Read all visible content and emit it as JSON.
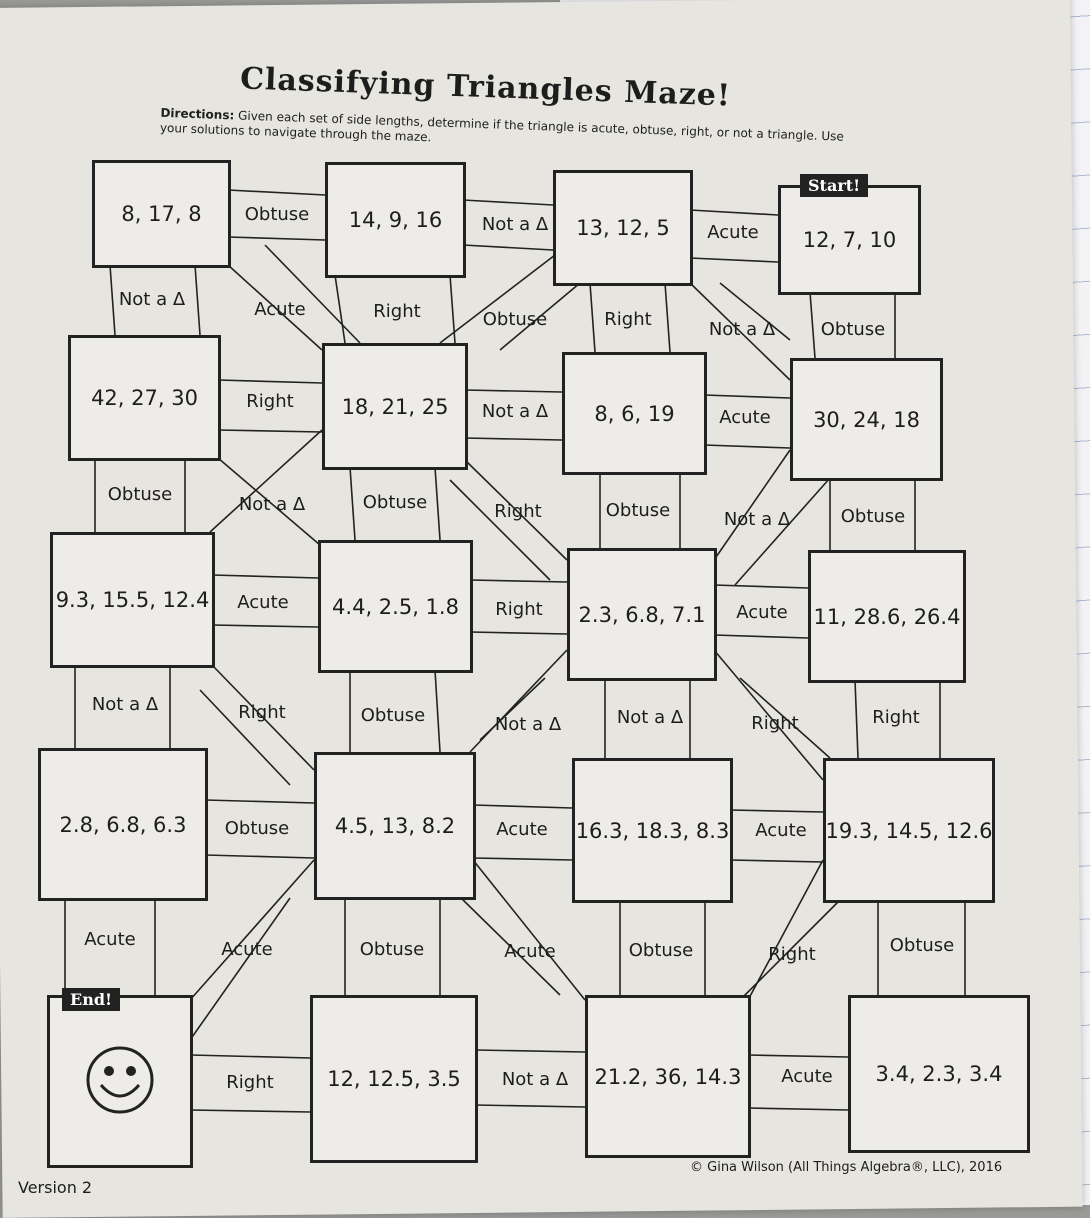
{
  "title": "Classifying Triangles Maze!",
  "directions": {
    "label": "Directions:",
    "text": "Given each set of side lengths, determine if the triangle is acute, obtuse, right, or not a triangle. Use your solutions to navigate through the maze."
  },
  "start_label": "Start!",
  "end_label": "End!",
  "end_icon": "smiley-face-icon",
  "boxes": [
    "8, 17, 8",
    "14, 9, 16",
    "13, 12, 5",
    "12, 7, 10",
    "42, 27, 30",
    "18, 21, 25",
    "8, 6, 19",
    "30, 24, 18",
    "9.3, 15.5, 12.4",
    "4.4, 2.5, 1.8",
    "2.3, 6.8, 7.1",
    "11, 28.6, 26.4",
    "2.8, 6.8, 6.3",
    "4.5, 13, 8.2",
    "16.3, 18.3, 8.3",
    "19.3, 14.5, 12.6",
    "12, 12.5, 3.5",
    "21.2, 36, 14.3",
    "3.4, 2.3, 3.4"
  ],
  "labels": [
    "Obtuse",
    "Not a Δ",
    "Acute",
    "Not a Δ",
    "Acute",
    "Right",
    "Obtuse",
    "Right",
    "Not a Δ",
    "Obtuse",
    "Right",
    "Not a Δ",
    "Acute",
    "Obtuse",
    "Not a Δ",
    "Obtuse",
    "Right",
    "Obtuse",
    "Not a Δ",
    "Obtuse",
    "Acute",
    "Right",
    "Acute",
    "Not a Δ",
    "Right",
    "Obtuse",
    "Not a Δ",
    "Not a Δ",
    "Right",
    "Right",
    "Obtuse",
    "Acute",
    "Acute",
    "Acute",
    "Acute",
    "Obtuse",
    "Acute",
    "Obtuse",
    "Right",
    "Obtuse",
    "Right",
    "Not a Δ",
    "Acute"
  ],
  "footer": {
    "version": "Version 2",
    "copyright": "© Gina Wilson (All Things Algebra®, LLC), 2016"
  }
}
